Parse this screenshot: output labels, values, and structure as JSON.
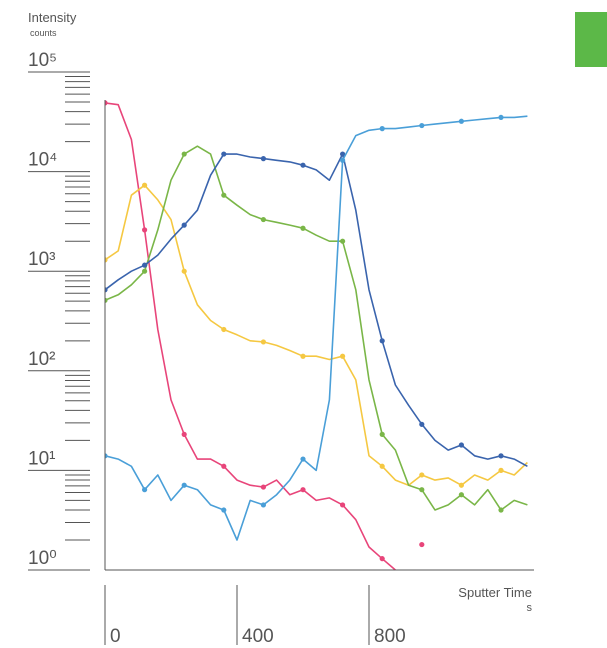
{
  "chart_data": {
    "type": "line",
    "ylabel": "Intensity",
    "yunit": "counts",
    "xlabel": "Sputter Time",
    "xunit": "s",
    "log_y": true,
    "xlim": [
      0,
      1300
    ],
    "xticks": [
      0,
      400,
      800
    ],
    "ylim": [
      1,
      100000
    ],
    "yticks": [
      {
        "value": 1,
        "label": "10⁰"
      },
      {
        "value": 10,
        "label": "10¹"
      },
      {
        "value": 100,
        "label": "10²"
      },
      {
        "value": 1000,
        "label": "10³"
      },
      {
        "value": 10000,
        "label": "10⁴"
      },
      {
        "value": 100000,
        "label": "10⁵"
      }
    ],
    "x": [
      0,
      40,
      80,
      120,
      160,
      200,
      240,
      280,
      320,
      360,
      400,
      440,
      480,
      520,
      560,
      600,
      640,
      680,
      720,
      760,
      800,
      840,
      880,
      920,
      960,
      1000,
      1040,
      1080,
      1120,
      1160,
      1200,
      1240,
      1280
    ],
    "series": [
      {
        "color": "#e8457a",
        "values": [
          49000,
          47000,
          21000,
          2600,
          260,
          51,
          23,
          13,
          13,
          11,
          8,
          7.1,
          6.8,
          8,
          5.7,
          6.4,
          5,
          5.3,
          4.5,
          3.2,
          1.7,
          1.3,
          1.0,
          null,
          1.8,
          null,
          null,
          null,
          null,
          1.6,
          null,
          null,
          1.4
        ]
      },
      {
        "color": "#f5c842",
        "values": [
          1300,
          1600,
          5800,
          7300,
          5200,
          3300,
          1000,
          460,
          320,
          260,
          230,
          200,
          195,
          180,
          160,
          140,
          140,
          130,
          140,
          81,
          14,
          11,
          8,
          7.1,
          9,
          8,
          8.4,
          7.1,
          9,
          8,
          10,
          9,
          12
        ]
      },
      {
        "color": "#7ab648",
        "values": [
          510,
          580,
          730,
          1000,
          2600,
          8200,
          15000,
          18000,
          15000,
          5800,
          4600,
          3700,
          3300,
          3100,
          2900,
          2700,
          2300,
          2000,
          2000,
          650,
          81,
          23,
          16,
          7.1,
          6.4,
          4,
          4.5,
          5.7,
          4.5,
          6.4,
          4,
          5,
          4.5
        ]
      },
      {
        "color": "#3a64ad",
        "values": [
          650,
          820,
          1000,
          1150,
          1450,
          2100,
          2900,
          4100,
          9200,
          15000,
          15000,
          14000,
          13500,
          13000,
          12500,
          11600,
          10400,
          8200,
          15000,
          4100,
          650,
          200,
          72,
          45,
          29,
          20,
          16,
          18,
          14,
          13,
          14,
          13,
          11
        ]
      },
      {
        "color": "#4a9fd8",
        "values": [
          14,
          13,
          11,
          6.4,
          9,
          5,
          7.1,
          6.4,
          4.5,
          4,
          2,
          5,
          4.5,
          5.7,
          8,
          13,
          10,
          51,
          13000,
          23000,
          26000,
          27000,
          27000,
          28000,
          29000,
          30000,
          31000,
          32000,
          33000,
          34000,
          35000,
          35000,
          36000
        ]
      }
    ]
  }
}
